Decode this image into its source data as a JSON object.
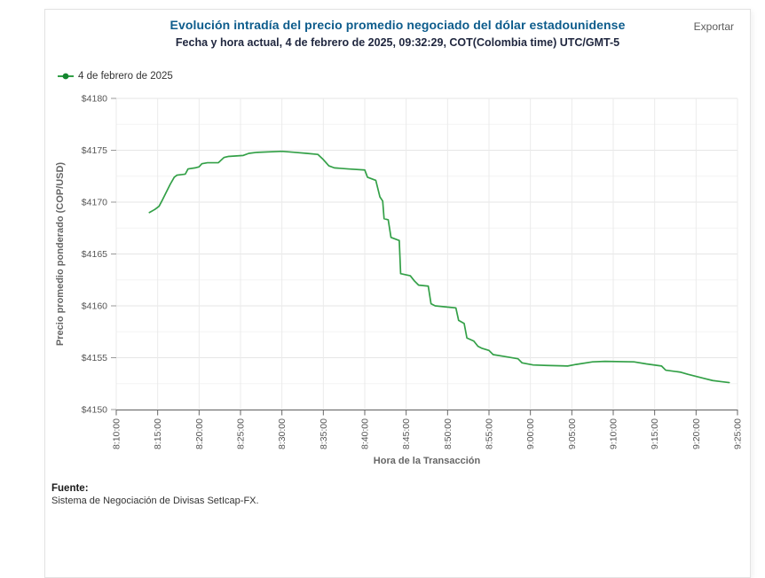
{
  "header": {
    "title": "Evolución intradía del precio promedio negociado del dólar estadounidense",
    "subtitle": "Fecha y hora actual, 4 de febrero de 2025, 09:32:29, COT(Colombia time) UTC/GMT-5",
    "export_label": "Exportar"
  },
  "legend": {
    "series_label": "4 de febrero de 2025"
  },
  "footer": {
    "source_label": "Fuente:",
    "source_text": "Sistema de Negociación de Divisas SetIcap-FX."
  },
  "colors": {
    "title": "#0d5c8c",
    "subtitle": "#20273f",
    "export_text": "#5c5c5c",
    "legend_text": "#333333",
    "source": "#1a1a1a",
    "line": "#33a047",
    "legend_dot": "#14862f",
    "grid_major": "#e6e6e6",
    "grid_minor": "#f3f3f3",
    "grid_vertical": "#ebebeb",
    "axis_line": "#666666",
    "tick_mark": "#999999",
    "axis_title": "#666666",
    "tick_text": "#555555"
  },
  "chart_data": {
    "type": "line",
    "title": "Evolución intradía del precio promedio negociado del dólar estadounidense",
    "subtitle": "Fecha y hora actual, 4 de febrero de 2025, 09:32:29, COT(Colombia time) UTC/GMT-5",
    "xlabel": "Hora de la Transacción",
    "ylabel": "Precio promedio ponderado (COP/USD)",
    "legend_position": "top-left",
    "grid": true,
    "xlim": [
      "8:10:00",
      "9:25:00"
    ],
    "ylim": [
      4150,
      4180
    ],
    "y_major_step": 5,
    "y_minor_step": 2.5,
    "x_ticks": [
      "8:10:00",
      "8:15:00",
      "8:20:00",
      "8:25:00",
      "8:30:00",
      "8:35:00",
      "8:40:00",
      "8:45:00",
      "8:50:00",
      "8:55:00",
      "9:00:00",
      "9:05:00",
      "9:10:00",
      "9:15:00",
      "9:20:00",
      "9:25:00"
    ],
    "y_ticks": [
      {
        "value": 4150,
        "label": "$4150"
      },
      {
        "value": 4155,
        "label": "$4155"
      },
      {
        "value": 4160,
        "label": "$4160"
      },
      {
        "value": 4165,
        "label": "$4165"
      },
      {
        "value": 4170,
        "label": "$4170"
      },
      {
        "value": 4175,
        "label": "$4175"
      },
      {
        "value": 4180,
        "label": "$4180"
      }
    ],
    "series": [
      {
        "name": "4 de febrero de 2025",
        "points": [
          [
            "8:14:00",
            4169.0
          ],
          [
            "8:14:40",
            4169.3
          ],
          [
            "8:15:10",
            4169.6
          ],
          [
            "8:15:30",
            4170.1
          ],
          [
            "8:16:00",
            4170.9
          ],
          [
            "8:16:30",
            4171.7
          ],
          [
            "8:17:00",
            4172.4
          ],
          [
            "8:17:20",
            4172.6
          ],
          [
            "8:18:20",
            4172.7
          ],
          [
            "8:18:40",
            4173.2
          ],
          [
            "8:19:30",
            4173.3
          ],
          [
            "8:20:00",
            4173.4
          ],
          [
            "8:20:20",
            4173.7
          ],
          [
            "8:21:00",
            4173.8
          ],
          [
            "8:22:20",
            4173.8
          ],
          [
            "8:23:00",
            4174.3
          ],
          [
            "8:23:30",
            4174.4
          ],
          [
            "8:25:20",
            4174.5
          ],
          [
            "8:26:00",
            4174.7
          ],
          [
            "8:27:00",
            4174.8
          ],
          [
            "8:30:00",
            4174.9
          ],
          [
            "8:31:30",
            4174.8
          ],
          [
            "8:33:00",
            4174.7
          ],
          [
            "8:34:20",
            4174.6
          ],
          [
            "8:35:00",
            4174.1
          ],
          [
            "8:35:40",
            4173.5
          ],
          [
            "8:36:20",
            4173.3
          ],
          [
            "8:38:00",
            4173.2
          ],
          [
            "8:40:00",
            4173.1
          ],
          [
            "8:40:20",
            4172.4
          ],
          [
            "8:41:20",
            4172.1
          ],
          [
            "8:41:50",
            4170.5
          ],
          [
            "8:42:10",
            4170.1
          ],
          [
            "8:42:20",
            4168.4
          ],
          [
            "8:42:50",
            4168.3
          ],
          [
            "8:43:10",
            4166.6
          ],
          [
            "8:44:10",
            4166.3
          ],
          [
            "8:44:20",
            4163.1
          ],
          [
            "8:45:30",
            4162.9
          ],
          [
            "8:46:00",
            4162.4
          ],
          [
            "8:46:30",
            4162.0
          ],
          [
            "8:47:40",
            4161.9
          ],
          [
            "8:48:00",
            4160.2
          ],
          [
            "8:48:30",
            4160.0
          ],
          [
            "8:51:00",
            4159.8
          ],
          [
            "8:51:20",
            4158.6
          ],
          [
            "8:52:00",
            4158.3
          ],
          [
            "8:52:20",
            4156.9
          ],
          [
            "8:53:10",
            4156.6
          ],
          [
            "8:53:40",
            4156.1
          ],
          [
            "8:54:10",
            4155.9
          ],
          [
            "8:55:00",
            4155.7
          ],
          [
            "8:55:30",
            4155.3
          ],
          [
            "8:57:00",
            4155.1
          ],
          [
            "8:58:30",
            4154.9
          ],
          [
            "8:59:00",
            4154.5
          ],
          [
            "9:00:20",
            4154.3
          ],
          [
            "9:02:00",
            4154.25
          ],
          [
            "9:04:30",
            4154.2
          ],
          [
            "9:05:30",
            4154.35
          ],
          [
            "9:07:30",
            4154.6
          ],
          [
            "9:09:00",
            4154.65
          ],
          [
            "9:12:30",
            4154.6
          ],
          [
            "9:14:00",
            4154.4
          ],
          [
            "9:15:50",
            4154.2
          ],
          [
            "9:16:20",
            4153.8
          ],
          [
            "9:18:10",
            4153.6
          ],
          [
            "9:19:00",
            4153.4
          ],
          [
            "9:20:00",
            4153.2
          ],
          [
            "9:21:00",
            4153.0
          ],
          [
            "9:22:00",
            4152.8
          ],
          [
            "9:23:00",
            4152.7
          ],
          [
            "9:24:00",
            4152.6
          ]
        ]
      }
    ]
  }
}
